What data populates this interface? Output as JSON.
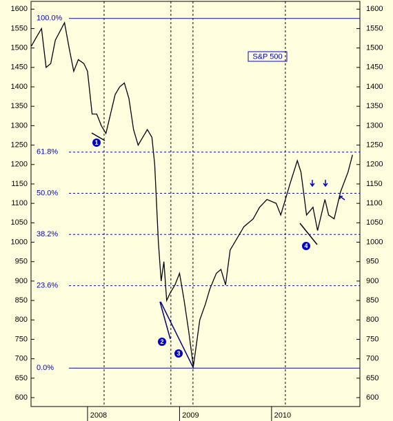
{
  "chart_data": {
    "type": "line",
    "title": "S&P 500",
    "x": [
      2007.39,
      2007.45,
      2007.5,
      2007.55,
      2007.6,
      2007.65,
      2007.75,
      2007.8,
      2007.85,
      2007.9,
      2007.96,
      2008.0,
      2008.05,
      2008.1,
      2008.15,
      2008.2,
      2008.25,
      2008.3,
      2008.35,
      2008.4,
      2008.45,
      2008.5,
      2008.55,
      2008.6,
      2008.65,
      2008.7,
      2008.73,
      2008.77,
      2008.8,
      2008.83,
      2008.86,
      2008.9,
      2008.95,
      2009.0,
      2009.05,
      2009.1,
      2009.15,
      2009.22,
      2009.28,
      2009.33,
      2009.4,
      2009.45,
      2009.5,
      2009.55,
      2009.6,
      2009.7,
      2009.8,
      2009.87,
      2009.95,
      2010.05,
      2010.1,
      2010.2,
      2010.28,
      2010.32,
      2010.38,
      2010.45,
      2010.5,
      2010.58,
      2010.62,
      2010.68,
      2010.75,
      2010.83,
      2010.88
    ],
    "values": [
      1505,
      1530,
      1550,
      1450,
      1460,
      1520,
      1565,
      1500,
      1440,
      1470,
      1460,
      1440,
      1330,
      1330,
      1300,
      1280,
      1330,
      1380,
      1400,
      1410,
      1370,
      1290,
      1250,
      1270,
      1290,
      1270,
      1200,
      1000,
      900,
      950,
      850,
      870,
      890,
      920,
      850,
      770,
      680,
      800,
      840,
      880,
      920,
      930,
      890,
      980,
      1000,
      1040,
      1060,
      1090,
      1110,
      1100,
      1070,
      1150,
      1210,
      1180,
      1070,
      1090,
      1030,
      1110,
      1070,
      1060,
      1130,
      1180,
      1225
    ],
    "color": "#000000",
    "xlim": [
      2007.386,
      2010.96
    ],
    "xticks": [
      2008,
      2009,
      2010
    ],
    "ylim": [
      577,
      1620
    ],
    "yticks": [
      600,
      650,
      700,
      750,
      800,
      850,
      900,
      950,
      1000,
      1050,
      1100,
      1150,
      1200,
      1250,
      1300,
      1350,
      1400,
      1450,
      1500,
      1550,
      1600
    ],
    "levels": [
      {
        "value": 1576,
        "label": "100.0%"
      },
      {
        "value": 1232,
        "label": "61.8%"
      },
      {
        "value": 1126,
        "label": "50.0%"
      },
      {
        "value": 1020,
        "label": "38.2%"
      },
      {
        "value": 888,
        "label": "23.6%"
      },
      {
        "value": 676,
        "label": "0.0%"
      }
    ],
    "vlines": [
      2008.18,
      2008.906,
      2009.146,
      2010.15
    ],
    "annotations": [
      "1",
      "2",
      "3",
      "4"
    ]
  }
}
